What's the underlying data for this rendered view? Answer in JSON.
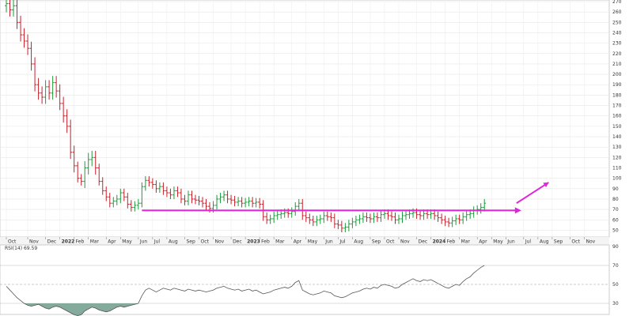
{
  "chart_data": [
    {
      "type": "ohlc",
      "title": "",
      "xlabel": "",
      "ylabel": "",
      "ylim": [
        45,
        270
      ],
      "y_ticks": [
        50,
        60,
        70,
        80,
        90,
        100,
        110,
        120,
        130,
        140,
        150,
        160,
        170,
        180,
        190,
        200,
        210,
        220,
        230,
        240,
        250,
        260,
        270
      ],
      "y_axis_side": "right",
      "grid": true,
      "x_range": [
        0,
        143
      ],
      "x_ticks": [
        {
          "i": 0,
          "label": "Oct"
        },
        {
          "i": 6,
          "label": "Nov"
        },
        {
          "i": 11,
          "label": "Dec"
        },
        {
          "i": 15,
          "label": "2022",
          "bold": true
        },
        {
          "i": 19,
          "label": "Feb"
        },
        {
          "i": 23,
          "label": "Mar"
        },
        {
          "i": 28,
          "label": "Apr"
        },
        {
          "i": 32,
          "label": "May"
        },
        {
          "i": 37,
          "label": "Jun"
        },
        {
          "i": 41,
          "label": "Jul"
        },
        {
          "i": 45,
          "label": "Aug"
        },
        {
          "i": 50,
          "label": "Sep"
        },
        {
          "i": 54,
          "label": "Oct"
        },
        {
          "i": 58,
          "label": "Nov"
        },
        {
          "i": 63,
          "label": "Dec"
        },
        {
          "i": 67,
          "label": "2023",
          "bold": true
        },
        {
          "i": 71,
          "label": "Feb"
        },
        {
          "i": 75,
          "label": "Mar"
        },
        {
          "i": 80,
          "label": "Apr"
        },
        {
          "i": 84,
          "label": "May"
        },
        {
          "i": 89,
          "label": "Jun"
        },
        {
          "i": 93,
          "label": "Jul"
        },
        {
          "i": 97,
          "label": "Aug"
        },
        {
          "i": 102,
          "label": "Sep"
        },
        {
          "i": 106,
          "label": "Oct"
        },
        {
          "i": 110,
          "label": "Nov"
        },
        {
          "i": 115,
          "label": "Dec"
        },
        {
          "i": 119,
          "label": "2024",
          "bold": true
        },
        {
          "i": 123,
          "label": "Feb"
        },
        {
          "i": 127,
          "label": "Mar"
        },
        {
          "i": 132,
          "label": "Apr"
        },
        {
          "i": 136,
          "label": "May"
        },
        {
          "i": 140,
          "label": "Jun"
        },
        {
          "i": 145,
          "label": "Jul"
        },
        {
          "i": 149,
          "label": "Aug"
        },
        {
          "i": 153,
          "label": "Sep"
        },
        {
          "i": 158,
          "label": "Oct"
        },
        {
          "i": 162,
          "label": "Nov"
        }
      ],
      "closes": [
        268,
        262,
        266,
        250,
        238,
        232,
        225,
        210,
        190,
        182,
        178,
        188,
        182,
        192,
        184,
        172,
        160,
        150,
        125,
        112,
        100,
        97,
        110,
        118,
        120,
        110,
        97,
        88,
        82,
        76,
        78,
        80,
        86,
        82,
        75,
        72,
        74,
        76,
        92,
        98,
        96,
        94,
        90,
        92,
        88,
        86,
        84,
        88,
        86,
        80,
        78,
        84,
        80,
        79,
        78,
        76,
        73,
        71,
        74,
        80,
        82,
        84,
        80,
        79,
        77,
        78,
        76,
        77,
        78,
        76,
        77,
        75,
        63,
        60,
        61,
        64,
        65,
        66,
        67,
        66,
        68,
        73,
        76,
        64,
        62,
        60,
        58,
        60,
        61,
        64,
        63,
        62,
        56,
        55,
        52,
        53,
        56,
        58,
        60,
        61,
        63,
        62,
        61,
        63,
        62,
        65,
        66,
        64,
        63,
        60,
        61,
        64,
        65,
        66,
        67,
        65,
        64,
        66,
        65,
        66,
        64,
        62,
        60,
        58,
        57,
        59,
        61,
        60,
        63,
        65,
        66,
        69,
        70,
        72,
        76
      ],
      "highs_offset": 4,
      "lows_offset": 4,
      "up_color": "#1e9a3a",
      "down_color": "#c8202a",
      "support_line": {
        "value": 69,
        "color": "#e025d8",
        "from_i": 38,
        "to_i": 143
      },
      "arrow": {
        "from": [
          143,
          76
        ],
        "to": [
          152,
          96
        ],
        "color": "#e025d8"
      }
    },
    {
      "type": "line",
      "title": "",
      "legend_label": "RSI(14) 69.59",
      "ylim": [
        20,
        90
      ],
      "y_ticks": [
        30,
        50,
        70,
        90
      ],
      "reference_lines": [
        30,
        50,
        70
      ],
      "midline": 50,
      "line_color": "#555555",
      "fill_below_30_color": "#6f9c8a",
      "values": [
        48,
        44,
        40,
        36,
        33,
        30,
        28,
        27,
        28,
        29,
        27,
        25,
        24,
        26,
        27,
        26,
        24,
        22,
        20,
        18,
        17,
        18,
        22,
        24,
        26,
        25,
        23,
        22,
        21,
        22,
        24,
        26,
        27,
        26,
        27,
        28,
        29,
        30,
        38,
        44,
        46,
        44,
        42,
        44,
        46,
        45,
        44,
        46,
        45,
        44,
        43,
        45,
        44,
        43,
        44,
        43,
        42,
        43,
        44,
        46,
        47,
        48,
        46,
        45,
        44,
        45,
        43,
        44,
        45,
        43,
        44,
        42,
        40,
        41,
        42,
        44,
        45,
        46,
        47,
        46,
        48,
        52,
        54,
        44,
        42,
        40,
        39,
        40,
        41,
        43,
        42,
        41,
        38,
        37,
        36,
        37,
        39,
        41,
        42,
        43,
        45,
        46,
        45,
        47,
        46,
        49,
        50,
        49,
        48,
        46,
        47,
        50,
        52,
        54,
        56,
        54,
        53,
        55,
        54,
        55,
        53,
        51,
        49,
        47,
        46,
        48,
        50,
        49,
        53,
        56,
        58,
        62,
        65,
        68,
        70
      ]
    }
  ]
}
